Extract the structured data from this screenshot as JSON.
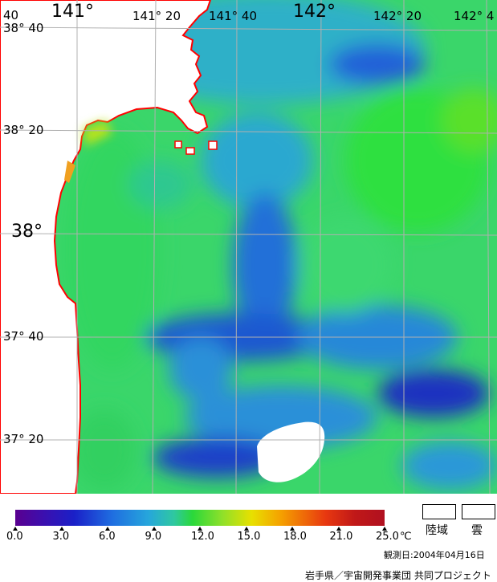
{
  "map": {
    "lon_labels": [
      {
        "text": "141°",
        "size": "big"
      },
      {
        "text": "141° 20",
        "size": "sm"
      },
      {
        "text": "141° 40",
        "size": "sm"
      },
      {
        "text": "142°",
        "size": "big"
      },
      {
        "text": "142° 20",
        "size": "sm"
      },
      {
        "text": "142° 4",
        "size": "sm"
      }
    ],
    "lat_labels": [
      {
        "text": "38° 40",
        "size": "sm"
      },
      {
        "text": "38° 20",
        "size": "sm"
      },
      {
        "text": "38°",
        "size": "big"
      },
      {
        "text": "37° 40",
        "size": "sm"
      },
      {
        "text": "37° 20",
        "size": "sm"
      }
    ],
    "corner_label": "40",
    "colors": {
      "land": "#ffffff",
      "coast": "#ff0000",
      "grid": "#b0b0b0",
      "cloud": "#ffffff"
    }
  },
  "legend": {
    "ticks": [
      "0.0",
      "3.0",
      "6.0",
      "9.0",
      "12.0",
      "15.0",
      "18.0",
      "21.0",
      "25.0"
    ],
    "unit": "℃",
    "land_label": "陸域",
    "cloud_label": "雲",
    "observation_date": "観測日:2004年04月16日",
    "credit": "岩手県／宇宙開発事業団 共同プロジェクト"
  }
}
